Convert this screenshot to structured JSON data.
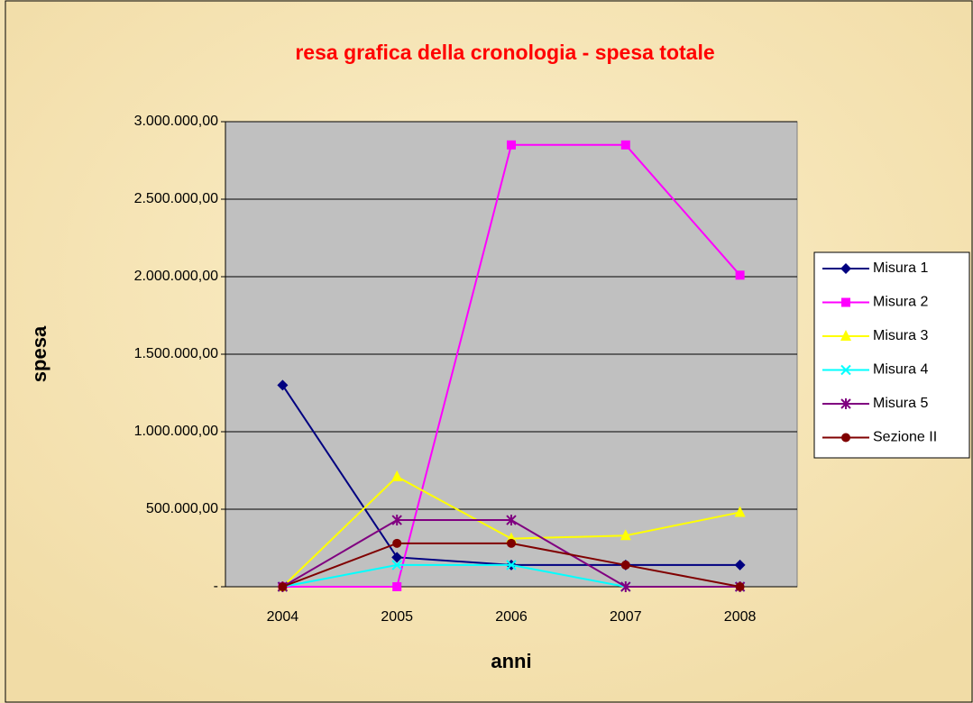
{
  "chart_data": {
    "type": "line",
    "title": "resa grafica della cronologia - spesa totale",
    "x_label": "anni",
    "y_label": "spesa",
    "categories": [
      "2004",
      "2005",
      "2006",
      "2007",
      "2008"
    ],
    "series": [
      {
        "name": "Misura 1",
        "color": "#000080",
        "marker": "diamond",
        "values": [
          1300000,
          190000,
          140000,
          140000,
          140000
        ]
      },
      {
        "name": "Misura 2",
        "color": "#ff00ff",
        "marker": "square",
        "values": [
          0,
          0,
          2850000,
          2850000,
          2010000
        ]
      },
      {
        "name": "Misura 3",
        "color": "#ffff00",
        "marker": "triangle",
        "values": [
          0,
          710000,
          310000,
          330000,
          480000
        ]
      },
      {
        "name": "Misura 4",
        "color": "#00ffff",
        "marker": "x",
        "values": [
          0,
          140000,
          140000,
          0,
          0
        ]
      },
      {
        "name": "Misura 5",
        "color": "#800080",
        "marker": "asterisk",
        "values": [
          0,
          430000,
          430000,
          0,
          0
        ]
      },
      {
        "name": "Sezione II",
        "color": "#800000",
        "marker": "circle",
        "values": [
          0,
          280000,
          280000,
          140000,
          0
        ]
      }
    ],
    "ylim": [
      0,
      3000000
    ],
    "yticks": [
      {
        "value": 0,
        "label": "-"
      },
      {
        "value": 500000,
        "label": "500.000,00"
      },
      {
        "value": 1000000,
        "label": "1.000.000,00"
      },
      {
        "value": 1500000,
        "label": "1.500.000,00"
      },
      {
        "value": 2000000,
        "label": "2.000.000,00"
      },
      {
        "value": 2500000,
        "label": "2.500.000,00"
      },
      {
        "value": 3000000,
        "label": "3.000.000,00"
      }
    ],
    "grid": true,
    "legend": "right"
  }
}
